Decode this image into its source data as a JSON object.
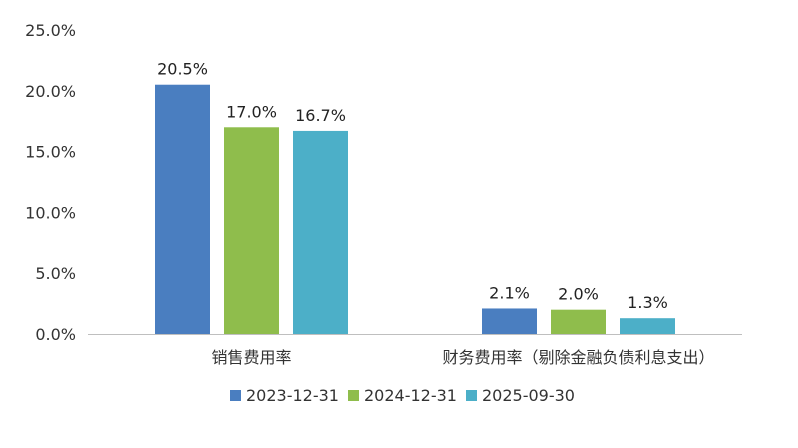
{
  "chart_data": {
    "type": "bar",
    "categories": [
      "销售费用率",
      "财务费用率（剔除金融负债利息支出）"
    ],
    "series": [
      {
        "name": "2023-12-31",
        "values": [
          20.5,
          2.1
        ],
        "color": "#4a7ec0"
      },
      {
        "name": "2024-12-31",
        "values": [
          17.0,
          2.0
        ],
        "color": "#8fbd4c"
      },
      {
        "name": "2025-09-30",
        "values": [
          16.7,
          1.3
        ],
        "color": "#4cafc8"
      }
    ],
    "ylim": [
      0,
      25
    ],
    "yticks": [
      0,
      5,
      10,
      15,
      20,
      25
    ],
    "tick_suffix": "%",
    "value_suffix": "%",
    "legend_position": "bottom",
    "grid": false
  }
}
